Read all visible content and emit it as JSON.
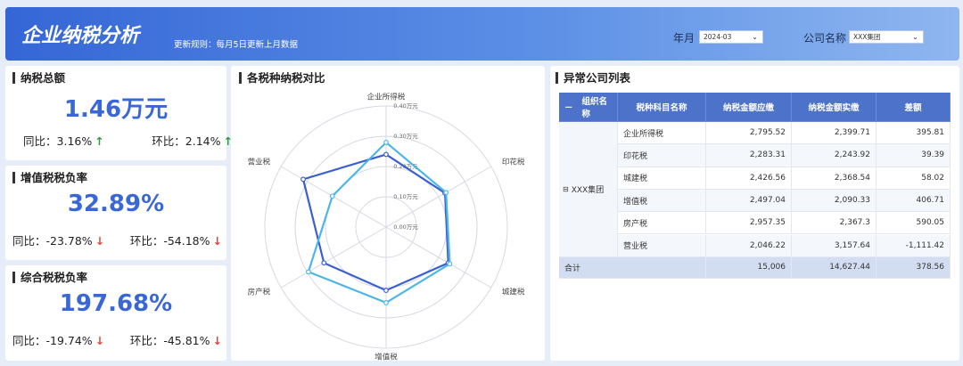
{
  "header": {
    "title": "企业纳税分析",
    "note": "更新规则：每月5日更新上月数据",
    "filters": [
      {
        "label": "年月",
        "value": "2024-03"
      },
      {
        "label": "公司名称",
        "value": "XXX集团"
      }
    ]
  },
  "kpis": [
    {
      "title": "纳税总额",
      "value": "1.46万元",
      "yoy_label": "同比：",
      "yoy": "3.16%",
      "yoy_trend": "up",
      "mom_label": "环比：",
      "mom": "2.14%",
      "mom_trend": "up"
    },
    {
      "title": "增值税税负率",
      "value": "32.89%",
      "yoy_label": "同比：",
      "yoy": "-23.78%",
      "yoy_trend": "down",
      "mom_label": "环比：",
      "mom": "-54.18%",
      "mom_trend": "down"
    },
    {
      "title": "综合税税负率",
      "value": "197.68%",
      "yoy_label": "同比：",
      "yoy": "-19.74%",
      "yoy_trend": "down",
      "mom_label": "环比：",
      "mom": "-45.81%",
      "mom_trend": "down"
    }
  ],
  "chart_data": {
    "type": "radar",
    "title": "各税种纳税对比",
    "categories": [
      "企业所得税",
      "印花税",
      "城建税",
      "增值税",
      "房产税",
      "营业税"
    ],
    "series": [
      {
        "color": "#3b5fd0",
        "values": [
          0.239971,
          0.224392,
          0.236854,
          0.209033,
          0.23673,
          0.315764
        ]
      },
      {
        "color": "#4db6e6",
        "values": [
          0.279552,
          0.228331,
          0.242656,
          0.249704,
          0.295735,
          0.204622
        ]
      }
    ],
    "ylim": [
      0,
      0.4
    ],
    "yticks": [
      {
        "value": 0,
        "label": "0.00万元"
      },
      {
        "value": 0.1,
        "label": "0.10万元"
      },
      {
        "value": 0.2,
        "label": "0.20万元"
      },
      {
        "value": 0.3,
        "label": "0.30万元"
      },
      {
        "value": 0.4,
        "label": "0.40万元"
      }
    ]
  },
  "table": {
    "title": "异常公司列表",
    "columns": [
      "组织名称",
      "税种科目名称",
      "纳税金额应缴",
      "纳税金额实缴",
      "差额"
    ],
    "group": "XXX集团",
    "rows": [
      [
        "企业所得税",
        "2,795.52",
        "2,399.71",
        "395.81"
      ],
      [
        "印花税",
        "2,283.31",
        "2,243.92",
        "39.39"
      ],
      [
        "城建税",
        "2,426.56",
        "2,368.54",
        "58.02"
      ],
      [
        "增值税",
        "2,497.04",
        "2,090.33",
        "406.71"
      ],
      [
        "房产税",
        "2,957.35",
        "2,367.3",
        "590.05"
      ],
      [
        "营业税",
        "2,046.22",
        "3,157.64",
        "-1,111.42"
      ]
    ],
    "total": [
      "合计",
      "15,006",
      "14,627.44",
      "378.56"
    ]
  }
}
